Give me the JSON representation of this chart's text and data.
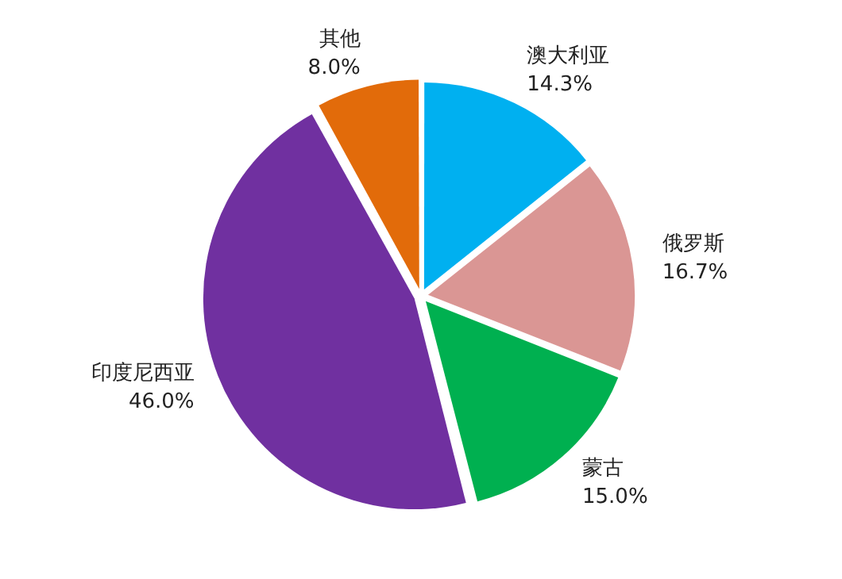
{
  "chart_data": {
    "type": "pie",
    "categories": [
      "澳大利亚",
      "俄罗斯",
      "蒙古",
      "印度尼西亚",
      "其他"
    ],
    "values": [
      14.3,
      16.7,
      15.0,
      46.0,
      8.0
    ],
    "colors": [
      "#00b0f0",
      "#da9694",
      "#00b050",
      "#7030a0",
      "#e26b0a"
    ],
    "value_labels": [
      "14.3%",
      "16.7%",
      "15.0%",
      "46.0%",
      "8.0%"
    ],
    "legend": false
  }
}
